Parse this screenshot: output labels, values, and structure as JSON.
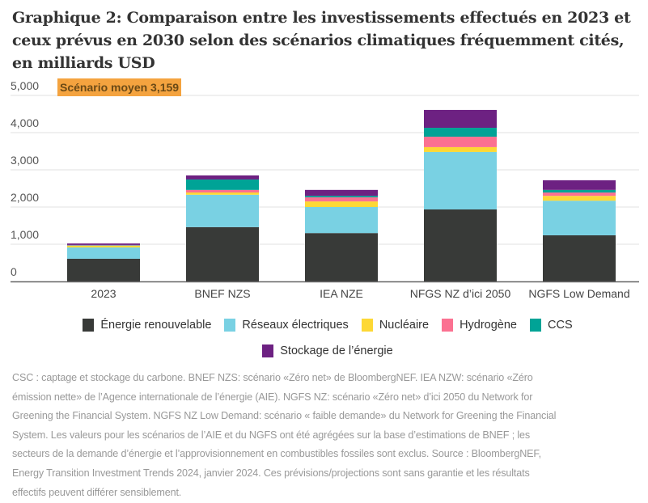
{
  "title": "Graphique 2: Comparaison entre les investissements effectués en 2023 et ceux prévus en 2030 selon des scénarios climatiques fréquemment cités, en milliards USD",
  "chart_data": {
    "type": "bar",
    "stacked": true,
    "categories": [
      "2023",
      "BNEF NZS",
      "IEA NZE",
      "NFGS NZ d’ici 2050",
      "NGFS Low Demand"
    ],
    "ylim": [
      0,
      5000
    ],
    "yticks": [
      "0",
      "1,000",
      "2,000",
      "3,000",
      "4,000",
      "5,000"
    ],
    "ytick_values": [
      0,
      1000,
      2000,
      3000,
      4000,
      5000
    ],
    "grid": true,
    "legend_position": "bottom",
    "annotation": "Scénario moyen 3,159",
    "annotation_color": "#F4A33F",
    "series": [
      {
        "name": "Énergie renouvelable",
        "color": "#383a38",
        "values": [
          610,
          1460,
          1300,
          1935,
          1240
        ]
      },
      {
        "name": "Réseaux électriques",
        "color": "#79d1e3",
        "values": [
          305,
          870,
          700,
          1545,
          930
        ]
      },
      {
        "name": "Nucléaire",
        "color": "#fdd835",
        "values": [
          45,
          60,
          150,
          130,
          130
        ]
      },
      {
        "name": "Hydrogène",
        "color": "#fb7191",
        "values": [
          10,
          70,
          110,
          280,
          90
        ]
      },
      {
        "name": "CCS",
        "color": "#00a396",
        "values": [
          10,
          280,
          40,
          240,
          70
        ]
      },
      {
        "name": "Stockage de l’énergie",
        "color": "#6d2182",
        "values": [
          40,
          110,
          160,
          480,
          260
        ]
      }
    ]
  },
  "footnote": [
    "CSC : captage et stockage du carbone. BNEF NZS: scénario «Zéro net» de BloombergNEF. IEA NZW: scénario «Zéro",
    "émission nette» de l’Agence internationale de l’énergie (AIE). NGFS NZ: scénario «Zéro net» d’ici 2050 du Network for",
    "Greening the Financial System. NGFS NZ Low Demand: scénario « faible demande» du Network for Greening the Financial",
    "System. Les valeurs pour les scénarios de l’AIE et du NGFS ont été agrégées sur la base d’estimations de BNEF ; les",
    "secteurs de la demande d’énergie et l’approvisionnement en combustibles fossiles sont exclus. Source : BloombergNEF,",
    "Energy Transition Investment Trends 2024, janvier 2024. Ces prévisions/projections sont sans garantie et les résultats",
    "effectifs peuvent différer sensiblement."
  ]
}
